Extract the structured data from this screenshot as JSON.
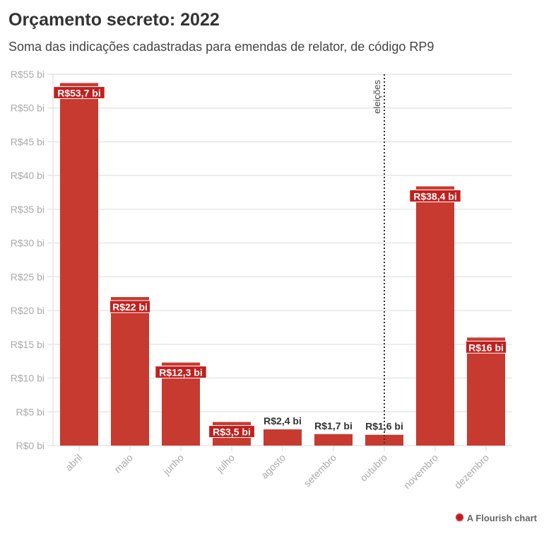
{
  "header": {
    "title": "Orçamento secreto: 2022",
    "subtitle": "Soma das indicações cadastradas para emendas de relator, de código RP9"
  },
  "credit": {
    "label": "A Flourish chart",
    "icon": "flourish-star-icon"
  },
  "chart_data": {
    "type": "bar",
    "categories": [
      "abril",
      "maio",
      "junho",
      "julho",
      "agosto",
      "setembro",
      "outubro",
      "novembro",
      "dezembro"
    ],
    "values": [
      53.7,
      22,
      12.3,
      3.5,
      2.4,
      1.7,
      1.6,
      38.4,
      16
    ],
    "data_labels": [
      "R$53,7 bi",
      "R$22 bi",
      "R$12,3 bi",
      "R$3,5 bi",
      "R$2,4 bi",
      "R$1,7 bi",
      "R$1,6 bi",
      "R$38,4 bi",
      "R$16 bi"
    ],
    "ylim": [
      0,
      55
    ],
    "yticks": [
      0,
      5,
      10,
      15,
      20,
      25,
      30,
      35,
      40,
      45,
      50,
      55
    ],
    "ytick_labels": [
      "R$0 bi",
      "R$5 bi",
      "R$10 bi",
      "R$15 bi",
      "R$20 bi",
      "R$25 bi",
      "R$30 bi",
      "R$35 bi",
      "R$40 bi",
      "R$45 bi",
      "R$50 bi",
      "R$55 bi"
    ],
    "grid": true,
    "bar_color": "#c63a30",
    "annotation": {
      "label": "eleições",
      "at_category": "outubro"
    }
  }
}
